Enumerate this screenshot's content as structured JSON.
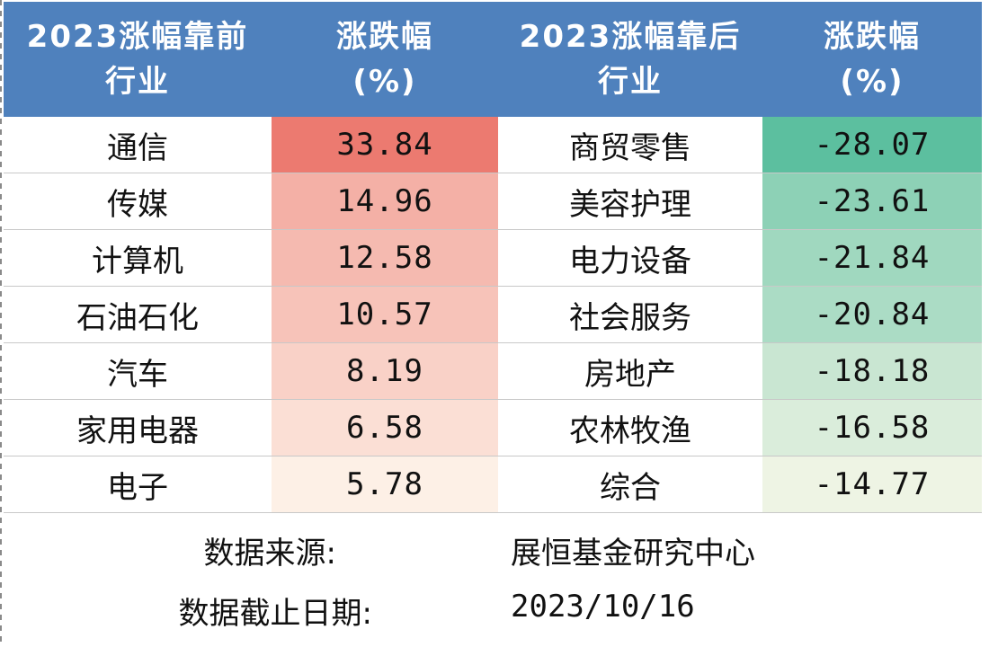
{
  "headers": {
    "top_industry": [
      "2023涨幅靠前",
      "行业"
    ],
    "top_change": [
      "涨跌幅",
      "(%)"
    ],
    "bottom_industry": [
      "2023涨幅靠后",
      "行业"
    ],
    "bottom_change": [
      "涨跌幅",
      "(%)"
    ]
  },
  "chart_data": {
    "type": "table",
    "columns": [
      "2023涨幅靠前行业",
      "涨跌幅(%)",
      "2023涨幅靠后行业",
      "涨跌幅(%)"
    ],
    "rows": [
      {
        "top_industry": "通信",
        "top_value": "33.84",
        "bottom_industry": "商贸零售",
        "bottom_value": "-28.07"
      },
      {
        "top_industry": "传媒",
        "top_value": "14.96",
        "bottom_industry": "美容护理",
        "bottom_value": "-23.61"
      },
      {
        "top_industry": "计算机",
        "top_value": "12.58",
        "bottom_industry": "电力设备",
        "bottom_value": "-21.84"
      },
      {
        "top_industry": "石油石化",
        "top_value": "10.57",
        "bottom_industry": "社会服务",
        "bottom_value": "-20.84"
      },
      {
        "top_industry": "汽车",
        "top_value": "8.19",
        "bottom_industry": "房地产",
        "bottom_value": "-18.18"
      },
      {
        "top_industry": "家用电器",
        "top_value": "6.58",
        "bottom_industry": "农林牧渔",
        "bottom_value": "-16.58"
      },
      {
        "top_industry": "电子",
        "top_value": "5.78",
        "bottom_industry": "综合",
        "bottom_value": "-14.77"
      }
    ]
  },
  "colors": {
    "header_bg": "#4f81bd",
    "positive_max": "#ec7a70",
    "positive_min": "#fdf0e6",
    "negative_max": "#5cbf9f",
    "negative_min": "#eef4e4"
  },
  "footer": {
    "source_label": "数据来源:",
    "source_value": "展恒基金研究中心",
    "date_label": "数据截止日期:",
    "date_value": "2023/10/16"
  }
}
